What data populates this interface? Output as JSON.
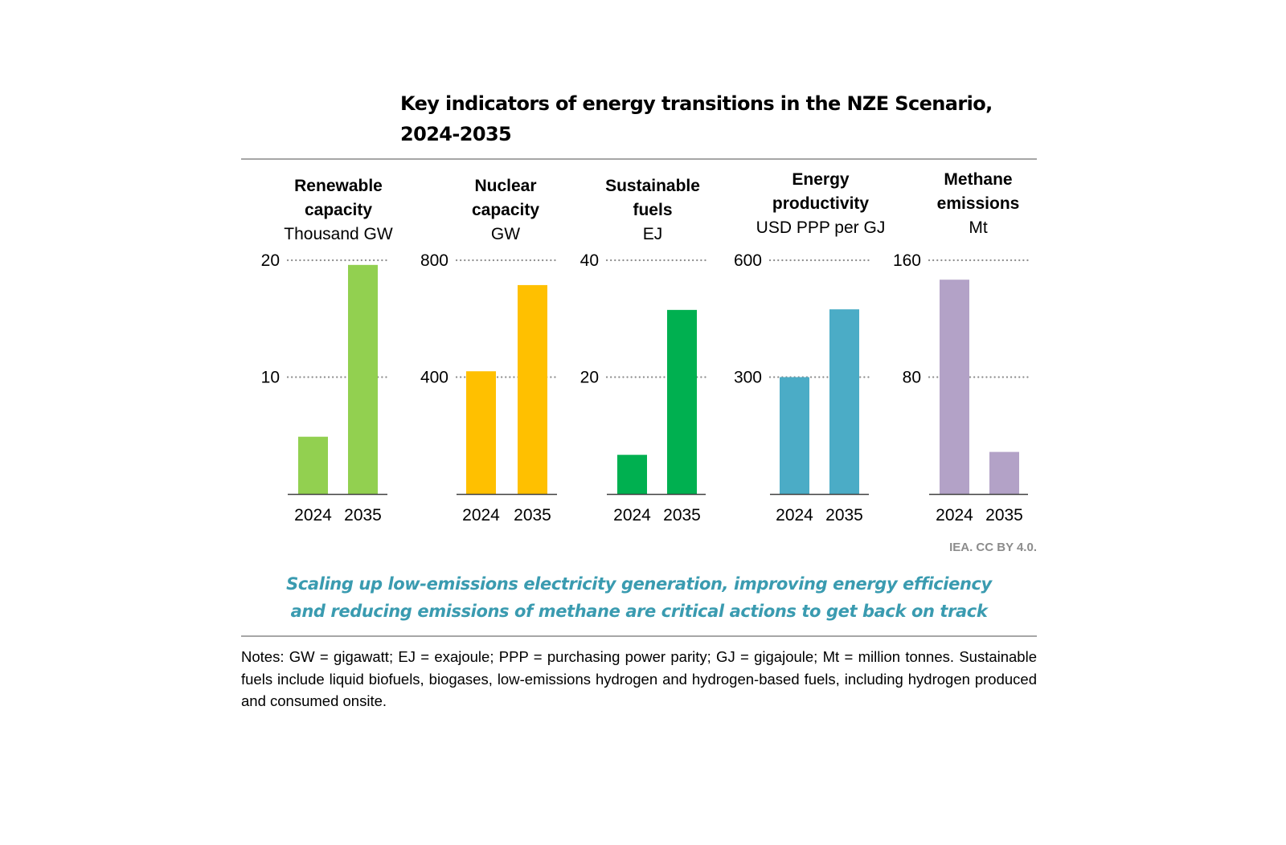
{
  "title": [
    "Key indicators of energy transitions in the NZE Scenario,",
    "2024-2035"
  ],
  "source": "IEA. CC BY 4.0.",
  "caption": [
    "Scaling up low-emissions electricity generation, improving energy efficiency",
    "and reducing emissions of methane are critical actions to get back on track"
  ],
  "notes": "Notes: GW = gigawatt; EJ = exajoule; PPP = purchasing power parity; GJ = gigajoule; Mt = million tonnes. Sustainable fuels include liquid biofuels, biogases, low-emissions hydrogen and hydrogen-based fuels, including hydrogen produced and consumed onsite.",
  "chart_data": [
    {
      "type": "bar",
      "title": [
        "Renewable",
        "capacity"
      ],
      "unit": "Thousand GW",
      "categories": [
        "2024",
        "2035"
      ],
      "values": [
        4.9,
        19.6
      ],
      "ylim": [
        0,
        20
      ],
      "ticks": [
        10,
        20
      ],
      "color": "#92d050",
      "grid": "dotted"
    },
    {
      "type": "bar",
      "title": [
        "Nuclear",
        "capacity"
      ],
      "unit": "GW",
      "categories": [
        "2024",
        "2035"
      ],
      "values": [
        420,
        715
      ],
      "ylim": [
        0,
        800
      ],
      "ticks": [
        400,
        800
      ],
      "color": "#ffc000",
      "grid": "dotted"
    },
    {
      "type": "bar",
      "title": [
        "Sustainable",
        "fuels"
      ],
      "unit": "EJ",
      "categories": [
        "2024",
        "2035"
      ],
      "values": [
        6.7,
        31.5
      ],
      "ylim": [
        0,
        40
      ],
      "ticks": [
        20,
        40
      ],
      "color": "#00b050",
      "grid": "dotted"
    },
    {
      "type": "bar",
      "title": [
        "Energy",
        "productivity"
      ],
      "unit": "USD PPP per GJ",
      "categories": [
        "2024",
        "2035"
      ],
      "values": [
        300,
        474
      ],
      "ylim": [
        0,
        600
      ],
      "ticks": [
        300,
        600
      ],
      "color": "#4bacc6",
      "grid": "dotted"
    },
    {
      "type": "bar",
      "title": [
        "Methane",
        "emissions"
      ],
      "unit": "Mt",
      "categories": [
        "2024",
        "2035"
      ],
      "values": [
        146.7,
        28.8
      ],
      "ylim": [
        0,
        160
      ],
      "ticks": [
        80,
        160
      ],
      "color": "#b3a2c7",
      "grid": "dotted"
    }
  ]
}
